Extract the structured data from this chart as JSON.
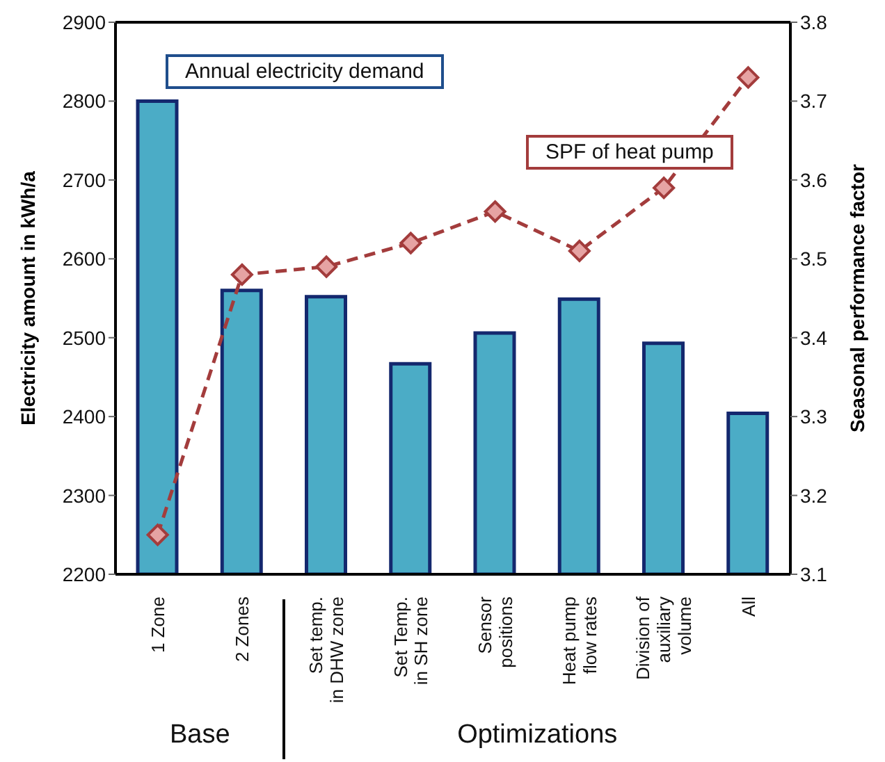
{
  "chart_data": {
    "type": "bar",
    "categories": [
      "1 Zone",
      "2 Zones",
      "Set temp.\nin DHW zone",
      "Set Temp.\nin SH zone",
      "Sensor\npositions",
      "Heat pump\nflow rates",
      "Division of\nauxiliary\nvolume",
      "All"
    ],
    "series": [
      {
        "name": "Annual electricity demand",
        "color": "#4bacc6",
        "values": [
          2800,
          2560,
          2552,
          2467,
          2506,
          2549,
          2493,
          2404
        ]
      },
      {
        "name": "SPF of heat pump",
        "type": "line",
        "axis": "y2",
        "color": "#a33c3c",
        "marker": "diamond",
        "line_style": "dashed",
        "values": [
          3.15,
          3.48,
          3.49,
          3.52,
          3.56,
          3.51,
          3.59,
          3.73
        ]
      }
    ],
    "ylabel": "Electricity amount in kWh/a",
    "y2label": "Seasonal performance factor",
    "ylim": [
      2200,
      2900
    ],
    "yticks": [
      2200,
      2300,
      2400,
      2500,
      2600,
      2700,
      2800,
      2900
    ],
    "y2lim": [
      3.1,
      3.8
    ],
    "y2ticks": [
      3.1,
      3.2,
      3.3,
      3.4,
      3.5,
      3.6,
      3.7,
      3.8
    ],
    "annotations": [
      "Base",
      "Optimizations"
    ]
  }
}
